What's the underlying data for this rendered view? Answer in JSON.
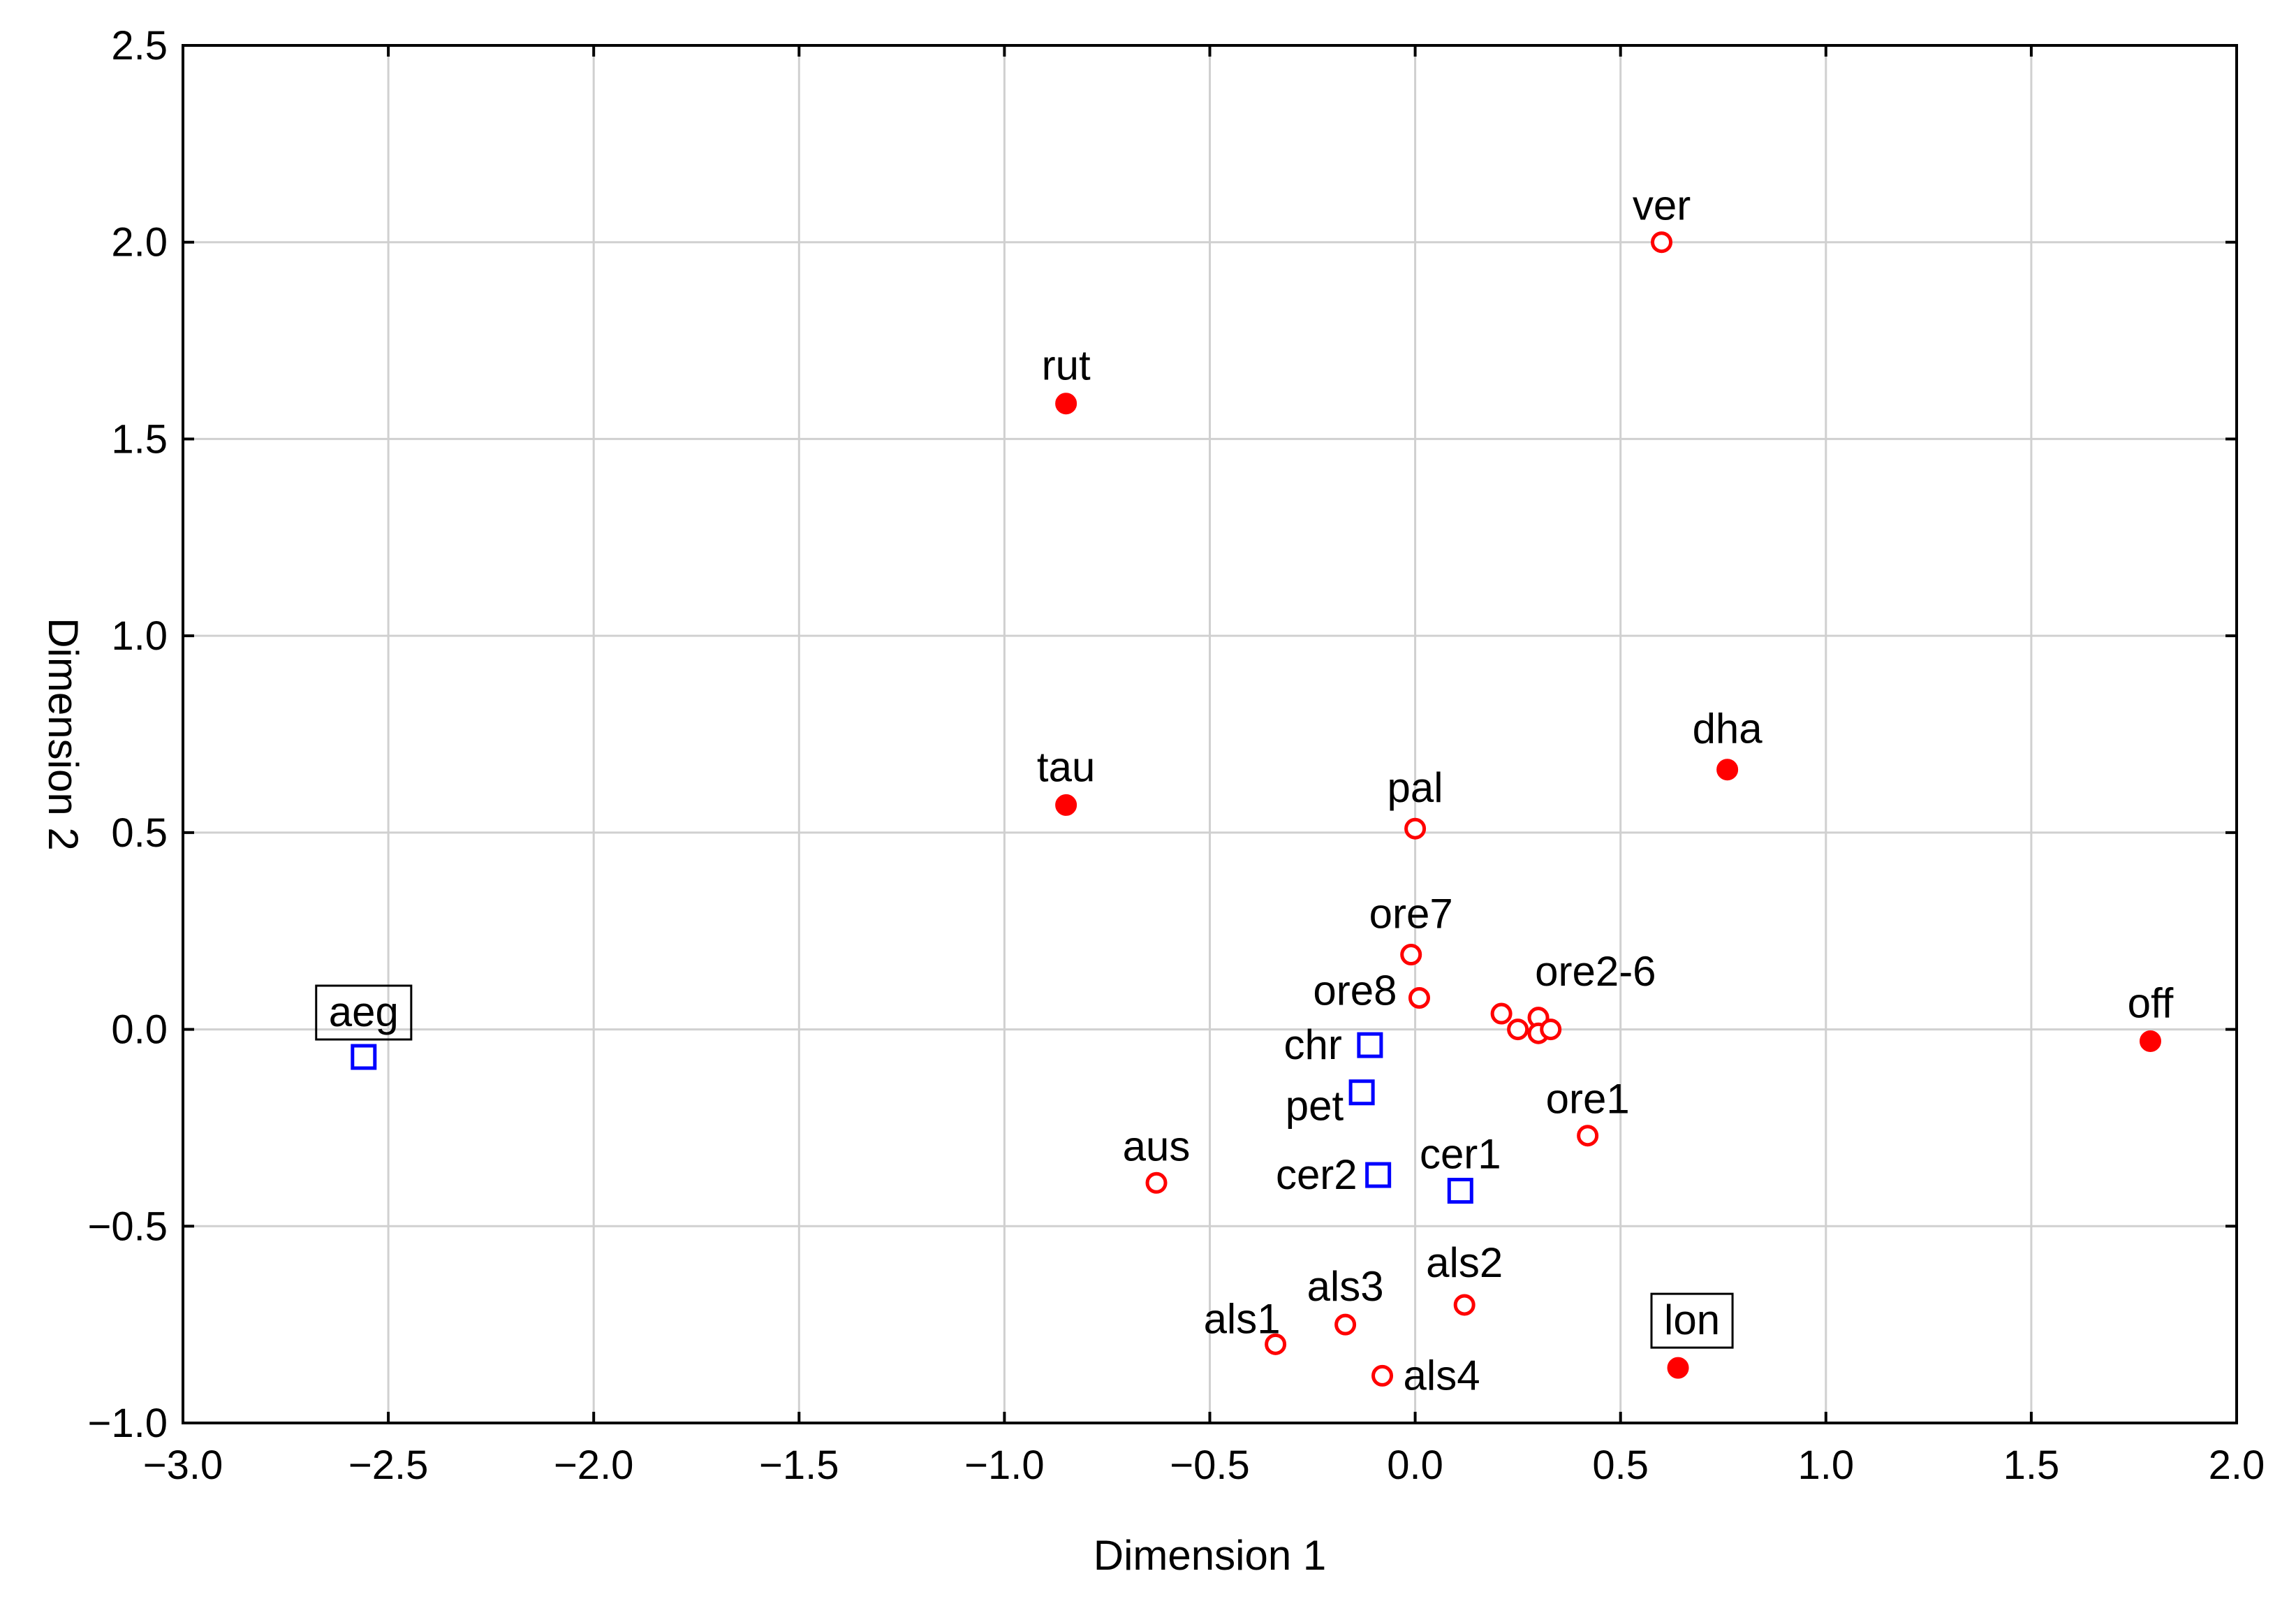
{
  "chart_data": {
    "type": "scatter",
    "title": "",
    "xlabel": "Dimension 1",
    "ylabel": "Dimension 2",
    "xlim": [
      -3.0,
      2.0
    ],
    "ylim": [
      -1.0,
      2.5
    ],
    "xticks": [
      -3.0,
      -2.5,
      -2.0,
      -1.5,
      -1.0,
      -0.5,
      0.0,
      0.5,
      1.0,
      1.5,
      2.0
    ],
    "yticks": [
      -1.0,
      -0.5,
      0.0,
      0.5,
      1.0,
      1.5,
      2.0,
      2.5
    ],
    "xtick_labels": [
      "−3.0",
      "−2.5",
      "−2.0",
      "−1.5",
      "−1.0",
      "−0.5",
      "0.0",
      "0.5",
      "1.0",
      "1.5",
      "2.0"
    ],
    "ytick_labels": [
      "−1.0",
      "−0.5",
      "0.0",
      "0.5",
      "1.0",
      "1.5",
      "2.0",
      "2.5"
    ],
    "grid": true,
    "colors": {
      "red": "#ff0000",
      "blue": "#0000ff",
      "grid": "#d0d0d0",
      "axis": "#000000"
    },
    "series": [
      {
        "name": "filled circles",
        "marker": "filled-circle",
        "color": "#ff0000",
        "points": [
          {
            "label": "rut",
            "x": -0.85,
            "y": 1.59
          },
          {
            "label": "tau",
            "x": -0.85,
            "y": 0.57
          },
          {
            "label": "dha",
            "x": 0.76,
            "y": 0.66
          },
          {
            "label": "off",
            "x": 1.79,
            "y": -0.03
          },
          {
            "label": "lon",
            "x": 0.64,
            "y": -0.86,
            "boxed": true
          }
        ]
      },
      {
        "name": "open circles",
        "marker": "open-circle",
        "color": "#ff0000",
        "points": [
          {
            "label": "ver",
            "x": 0.6,
            "y": 2.0
          },
          {
            "label": "pal",
            "x": 0.0,
            "y": 0.51
          },
          {
            "label": "ore7",
            "x": -0.01,
            "y": 0.19
          },
          {
            "label": "ore8",
            "x": 0.01,
            "y": 0.08
          },
          {
            "label": "ore2-6",
            "x": 0.21,
            "y": 0.04
          },
          {
            "label": "",
            "x": 0.25,
            "y": 0.0
          },
          {
            "label": "",
            "x": 0.3,
            "y": 0.03
          },
          {
            "label": "",
            "x": 0.3,
            "y": -0.01
          },
          {
            "label": "",
            "x": 0.33,
            "y": 0.0
          },
          {
            "label": "ore1",
            "x": 0.42,
            "y": -0.27
          },
          {
            "label": "aus",
            "x": -0.63,
            "y": -0.39
          },
          {
            "label": "als1",
            "x": -0.34,
            "y": -0.8
          },
          {
            "label": "als3",
            "x": -0.17,
            "y": -0.75
          },
          {
            "label": "als2",
            "x": 0.12,
            "y": -0.7
          },
          {
            "label": "als4",
            "x": -0.08,
            "y": -0.88
          }
        ]
      },
      {
        "name": "open squares",
        "marker": "open-square",
        "color": "#0000ff",
        "points": [
          {
            "label": "aeg",
            "x": -2.56,
            "y": -0.07,
            "boxed": true
          },
          {
            "label": "chr",
            "x": -0.11,
            "y": -0.04
          },
          {
            "label": "pet",
            "x": -0.13,
            "y": -0.16
          },
          {
            "label": "cer2",
            "x": -0.09,
            "y": -0.37
          },
          {
            "label": "cer1",
            "x": 0.11,
            "y": -0.41
          }
        ]
      }
    ]
  }
}
